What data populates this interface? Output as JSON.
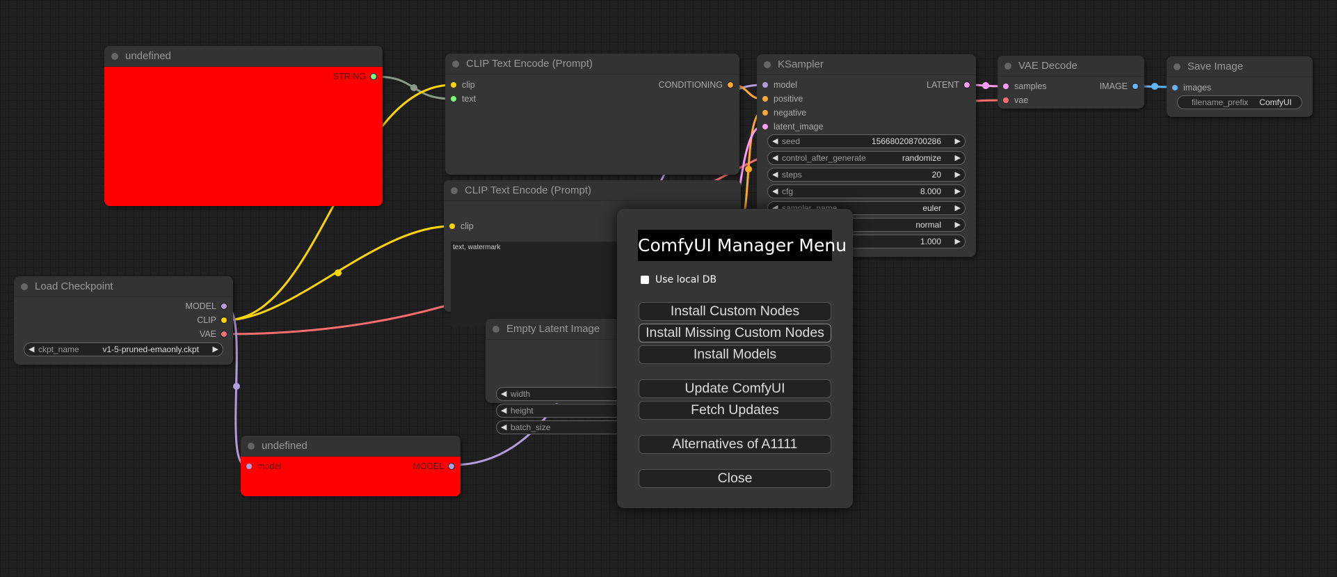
{
  "colors": {
    "clip": "#FFD500",
    "vae": "#FF6E6E",
    "model": "#B39DDB",
    "latent": "#FF9CF9",
    "conditioning": "#FFA931",
    "image": "#64B5F6",
    "string": "#77FF77",
    "error_node": "#FF0000"
  },
  "nodes": {
    "undefined_top": {
      "title": "undefined",
      "output": "STRING"
    },
    "clip_pos": {
      "title": "CLIP Text Encode (Prompt)",
      "inputs": [
        "clip",
        "text"
      ],
      "output": "CONDITIONING"
    },
    "clip_neg": {
      "title": "CLIP Text Encode (Prompt)",
      "inputs": [
        "clip"
      ],
      "text": "text, watermark"
    },
    "empty_latent": {
      "title": "Empty Latent Image",
      "widgets": [
        "width",
        "height",
        "batch_size"
      ]
    },
    "ksampler": {
      "title": "KSampler",
      "inputs": [
        "model",
        "positive",
        "negative",
        "latent_image"
      ],
      "output": "LATENT",
      "widgets": [
        {
          "label": "seed",
          "value": "156680208700286"
        },
        {
          "label": "control_after_generate",
          "value": "randomize"
        },
        {
          "label": "steps",
          "value": "20"
        },
        {
          "label": "cfg",
          "value": "8.000"
        },
        {
          "label": "sampler_name",
          "value": "euler"
        },
        {
          "value": "normal"
        },
        {
          "value": "1.000"
        }
      ]
    },
    "vae_decode": {
      "title": "VAE Decode",
      "inputs": [
        "samples",
        "vae"
      ],
      "output": "IMAGE"
    },
    "save_image": {
      "title": "Save Image",
      "inputs": [
        "images"
      ],
      "widget": {
        "label": "filename_prefix",
        "value": "ComfyUI"
      }
    },
    "load_checkpoint": {
      "title": "Load Checkpoint",
      "outputs": [
        "MODEL",
        "CLIP",
        "VAE"
      ],
      "widget": {
        "label": "ckpt_name",
        "value": "v1-5-pruned-emaonly.ckpt"
      }
    },
    "undefined_bottom": {
      "title": "undefined",
      "input": "model",
      "output": "MODEL"
    }
  },
  "dialog": {
    "title": "ComfyUI Manager Menu",
    "checkbox_label": "Use local DB",
    "checkbox_checked": false,
    "buttons": [
      "Install Custom Nodes",
      "Install Missing Custom Nodes",
      "Install Models",
      "Update ComfyUI",
      "Fetch Updates",
      "Alternatives of A1111",
      "Close"
    ]
  }
}
